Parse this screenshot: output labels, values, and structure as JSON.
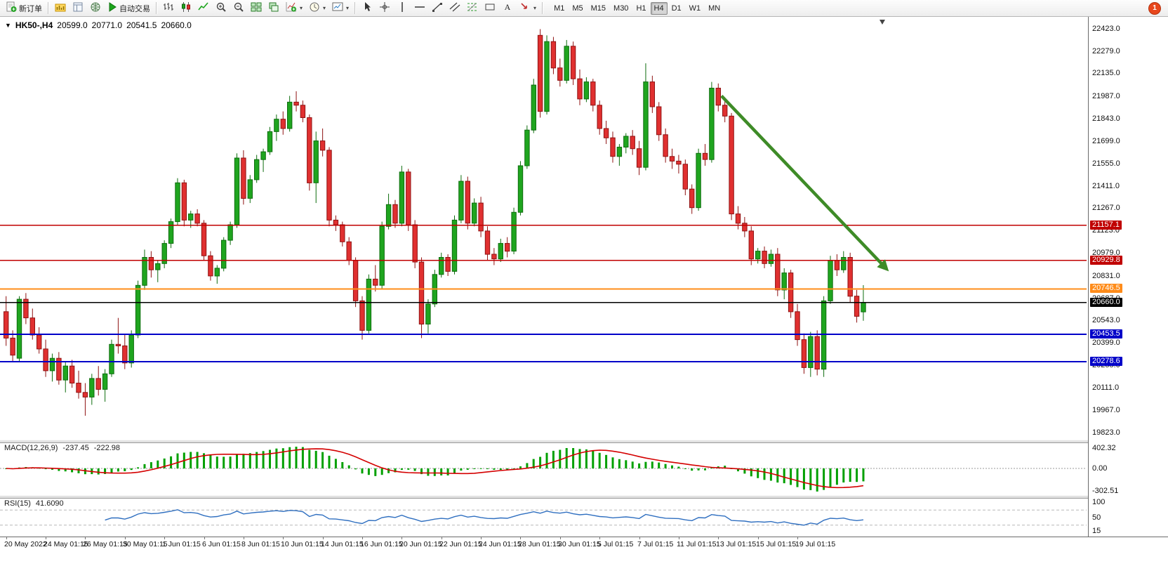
{
  "toolbar": {
    "new_order": "新订单",
    "auto_trading": "自动交易",
    "timeframes": [
      "M1",
      "M5",
      "M15",
      "M30",
      "H1",
      "H4",
      "D1",
      "W1",
      "MN"
    ],
    "active_timeframe": "H4",
    "notification_count": "1"
  },
  "chart_data": {
    "type": "candlestick",
    "header": {
      "symbol_period": "HK50-,H4",
      "open": "20599.0",
      "high": "20771.0",
      "low": "20541.5",
      "close": "20660.0"
    },
    "price_range": [
      19776,
      22490
    ],
    "candle_span_frac": 0.795,
    "y_ticks": [
      "22423.0",
      "22279.0",
      "22135.0",
      "21987.0",
      "21843.0",
      "21699.0",
      "21555.0",
      "21411.0",
      "21267.0",
      "21123.0",
      "20979.0",
      "20831.0",
      "20687.0",
      "20543.0",
      "20399.0",
      "20255.0",
      "20111.0",
      "19967.0",
      "19823.0"
    ],
    "horizontal_lines": [
      {
        "price": 21157.1,
        "label": "21157.1",
        "color": "#c00000"
      },
      {
        "price": 20929.8,
        "label": "20929.8",
        "color": "#c00000"
      },
      {
        "price": 20746.5,
        "label": "20746.5",
        "color": "#ff8c1a"
      },
      {
        "price": 20660.0,
        "label": "20660.0",
        "color": "#000000"
      },
      {
        "price": 20453.5,
        "label": "20453.5",
        "color": "#0000c8"
      },
      {
        "price": 20278.6,
        "label": "20278.6",
        "color": "#0000c8"
      }
    ],
    "trend_arrow": {
      "x1_frac": 0.664,
      "price1": 21990,
      "x2_frac": 0.818,
      "price2": 20860,
      "color": "#3e8b27"
    },
    "x_labels": [
      "20 May 2022",
      "24 May 01:15",
      "26 May 01:15",
      "30 May 01:15",
      "1 Jun 01:15",
      "6 Jun 01:15",
      "8 Jun 01:15",
      "10 Jun 01:15",
      "14 Jun 01:15",
      "16 Jun 01:15",
      "20 Jun 01:15",
      "22 Jun 01:15",
      "24 Jun 01:15",
      "28 Jun 01:15",
      "30 Jun 01:15",
      "5 Jul 01:15",
      "7 Jul 01:15",
      "11 Jul 01:15",
      "13 Jul 01:15",
      "15 Jul 01:15",
      "19 Jul 01:15"
    ],
    "x_label_step": 6,
    "candles": [
      [
        20600,
        20700,
        20380,
        20430
      ],
      [
        20430,
        20480,
        20280,
        20320
      ],
      [
        20300,
        20700,
        20280,
        20680
      ],
      [
        20680,
        20720,
        20520,
        20560
      ],
      [
        20560,
        20620,
        20420,
        20450
      ],
      [
        20450,
        20500,
        20330,
        20360
      ],
      [
        20360,
        20420,
        20180,
        20220
      ],
      [
        20220,
        20330,
        20150,
        20300
      ],
      [
        20300,
        20340,
        20130,
        20160
      ],
      [
        20160,
        20280,
        20080,
        20250
      ],
      [
        20250,
        20290,
        20110,
        20140
      ],
      [
        20140,
        20220,
        20040,
        20080
      ],
      [
        20080,
        20140,
        19930,
        20050
      ],
      [
        20050,
        20200,
        20000,
        20170
      ],
      [
        20170,
        20250,
        20060,
        20100
      ],
      [
        20100,
        20230,
        20020,
        20200
      ],
      [
        20200,
        20420,
        20180,
        20390
      ],
      [
        20390,
        20560,
        20330,
        20380
      ],
      [
        20380,
        20450,
        20230,
        20270
      ],
      [
        20270,
        20480,
        20240,
        20450
      ],
      [
        20450,
        20800,
        20430,
        20770
      ],
      [
        20770,
        21000,
        20740,
        20950
      ],
      [
        20950,
        20990,
        20820,
        20870
      ],
      [
        20870,
        20930,
        20790,
        20910
      ],
      [
        20910,
        21060,
        20880,
        21040
      ],
      [
        21040,
        21200,
        21010,
        21180
      ],
      [
        21180,
        21460,
        21160,
        21430
      ],
      [
        21430,
        21450,
        21150,
        21190
      ],
      [
        21190,
        21250,
        21140,
        21230
      ],
      [
        21230,
        21260,
        21150,
        21170
      ],
      [
        21170,
        21190,
        20930,
        20960
      ],
      [
        20960,
        20990,
        20800,
        20830
      ],
      [
        20830,
        20900,
        20780,
        20880
      ],
      [
        20880,
        21080,
        20860,
        21060
      ],
      [
        21060,
        21180,
        21030,
        21160
      ],
      [
        21160,
        21620,
        21140,
        21590
      ],
      [
        21590,
        21640,
        21290,
        21330
      ],
      [
        21330,
        21480,
        21300,
        21450
      ],
      [
        21450,
        21610,
        21430,
        21580
      ],
      [
        21580,
        21650,
        21500,
        21630
      ],
      [
        21630,
        21790,
        21610,
        21760
      ],
      [
        21760,
        21870,
        21700,
        21840
      ],
      [
        21840,
        21890,
        21740,
        21780
      ],
      [
        21780,
        21990,
        21760,
        21950
      ],
      [
        21950,
        22020,
        21890,
        21930
      ],
      [
        21930,
        21960,
        21820,
        21850
      ],
      [
        21850,
        21870,
        21380,
        21430
      ],
      [
        21430,
        21760,
        21300,
        21700
      ],
      [
        21700,
        21780,
        21600,
        21640
      ],
      [
        21640,
        21660,
        21150,
        21190
      ],
      [
        21190,
        21220,
        21120,
        21160
      ],
      [
        21160,
        21180,
        21020,
        21050
      ],
      [
        21050,
        21080,
        20900,
        20930
      ],
      [
        20930,
        20950,
        20630,
        20670
      ],
      [
        20670,
        20700,
        20420,
        20480
      ],
      [
        20480,
        20840,
        20460,
        20810
      ],
      [
        20810,
        20900,
        20730,
        20770
      ],
      [
        20770,
        21180,
        20750,
        21150
      ],
      [
        21150,
        21360,
        21130,
        21290
      ],
      [
        21290,
        21320,
        21140,
        21170
      ],
      [
        21170,
        21540,
        21150,
        21500
      ],
      [
        21500,
        21520,
        21120,
        21160
      ],
      [
        21160,
        21190,
        20880,
        20920
      ],
      [
        20920,
        20950,
        20430,
        20520
      ],
      [
        20520,
        20680,
        20460,
        20650
      ],
      [
        20650,
        20870,
        20630,
        20840
      ],
      [
        20840,
        20980,
        20820,
        20950
      ],
      [
        20950,
        20970,
        20830,
        20860
      ],
      [
        20860,
        21220,
        20840,
        21190
      ],
      [
        21190,
        21480,
        21170,
        21440
      ],
      [
        21440,
        21470,
        21130,
        21170
      ],
      [
        21170,
        21330,
        21150,
        21300
      ],
      [
        21300,
        21340,
        21080,
        21120
      ],
      [
        21120,
        21150,
        20930,
        20970
      ],
      [
        20970,
        21010,
        20900,
        20940
      ],
      [
        20940,
        21070,
        20920,
        21040
      ],
      [
        21040,
        21080,
        20950,
        20990
      ],
      [
        20990,
        21270,
        20970,
        21240
      ],
      [
        21240,
        21570,
        21220,
        21540
      ],
      [
        21540,
        21800,
        21520,
        21770
      ],
      [
        21770,
        22100,
        21750,
        22060
      ],
      [
        22380,
        22420,
        21850,
        21890
      ],
      [
        21890,
        22380,
        21870,
        22340
      ],
      [
        22340,
        22370,
        22130,
        22170
      ],
      [
        22170,
        22230,
        22050,
        22090
      ],
      [
        22090,
        22350,
        22070,
        22310
      ],
      [
        22310,
        22340,
        22060,
        22100
      ],
      [
        22100,
        22160,
        21930,
        21970
      ],
      [
        21970,
        22110,
        21950,
        22080
      ],
      [
        22080,
        22100,
        21890,
        21930
      ],
      [
        21930,
        21960,
        21740,
        21780
      ],
      [
        21780,
        21830,
        21680,
        21720
      ],
      [
        21720,
        21760,
        21560,
        21600
      ],
      [
        21600,
        21680,
        21540,
        21660
      ],
      [
        21660,
        21750,
        21620,
        21730
      ],
      [
        21730,
        21770,
        21610,
        21650
      ],
      [
        21650,
        21700,
        21480,
        21530
      ],
      [
        21530,
        22200,
        21510,
        22080
      ],
      [
        22080,
        22120,
        21880,
        21920
      ],
      [
        21920,
        21950,
        21700,
        21740
      ],
      [
        21740,
        21780,
        21560,
        21600
      ],
      [
        21600,
        21650,
        21520,
        21570
      ],
      [
        21570,
        21610,
        21490,
        21550
      ],
      [
        21550,
        21580,
        21350,
        21390
      ],
      [
        21390,
        21420,
        21230,
        21270
      ],
      [
        21270,
        21650,
        21250,
        21620
      ],
      [
        21620,
        21680,
        21540,
        21580
      ],
      [
        21580,
        22080,
        21560,
        22040
      ],
      [
        22040,
        22070,
        21890,
        21930
      ],
      [
        21930,
        21960,
        21820,
        21860
      ],
      [
        21860,
        21880,
        21190,
        21230
      ],
      [
        21230,
        21280,
        21130,
        21170
      ],
      [
        21170,
        21210,
        21080,
        21120
      ],
      [
        21120,
        21150,
        20900,
        20940
      ],
      [
        20940,
        21010,
        20910,
        20990
      ],
      [
        20990,
        21020,
        20880,
        20910
      ],
      [
        20910,
        21000,
        20890,
        20970
      ],
      [
        20970,
        21010,
        20700,
        20740
      ],
      [
        20740,
        20880,
        20680,
        20850
      ],
      [
        20850,
        20870,
        20560,
        20600
      ],
      [
        20600,
        20650,
        20380,
        20420
      ],
      [
        20420,
        20460,
        20200,
        20240
      ],
      [
        20240,
        20470,
        20180,
        20440
      ],
      [
        20440,
        20480,
        20190,
        20230
      ],
      [
        20230,
        20700,
        20180,
        20670
      ],
      [
        20670,
        20960,
        20650,
        20930
      ],
      [
        20930,
        20970,
        20830,
        20870
      ],
      [
        20870,
        20990,
        20850,
        20950
      ],
      [
        20950,
        20980,
        20660,
        20700
      ],
      [
        20700,
        20740,
        20530,
        20570
      ],
      [
        20599,
        20771,
        20541.5,
        20660
      ]
    ]
  },
  "macd": {
    "label": "MACD(12,26,9)",
    "value_main": "-237.45",
    "value_signal": "-222.98",
    "y_ticks": [
      "402.32",
      "0.00",
      "-302.51"
    ]
  },
  "rsi": {
    "label": "RSI(15)",
    "value": "41.6090",
    "y_ticks": [
      "100",
      "50",
      "15"
    ],
    "levels": [
      70,
      30
    ]
  },
  "colors": {
    "candle_up": "#1fa51f",
    "candle_up_stroke": "#0e6d0e",
    "candle_down": "#e03030",
    "candle_down_stroke": "#8f1212",
    "macd_hist": "#00a000",
    "macd_signal": "#d40000",
    "rsi_line": "#2f6fc0",
    "arrow": "#3e8b27"
  }
}
